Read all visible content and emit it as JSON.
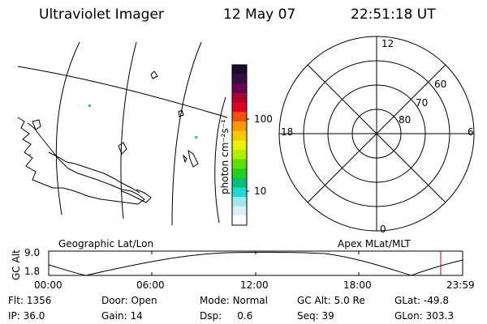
{
  "header": {
    "title": "Ultraviolet Imager",
    "date": "12 May 07",
    "time": "22:51:18 UT"
  },
  "colorbar": {
    "unit_label": "photon cm⁻²s⁻¹",
    "ticks": [
      "100",
      "10"
    ],
    "colors": [
      "#1a0a2e",
      "#3a0a40",
      "#6a0050",
      "#b00030",
      "#e00020",
      "#f05010",
      "#f59a00",
      "#f5c800",
      "#e8f000",
      "#b0f000",
      "#60e000",
      "#20d020",
      "#00c080",
      "#20d8d8",
      "#a0e8ec",
      "#d8f2f4",
      "#ffffff"
    ]
  },
  "map": {
    "left_caption": "Geographic Lat/Lon",
    "right_caption": "Apex MLat/MLT"
  },
  "polar": {
    "mlt_labels": {
      "top": "12",
      "left": "18",
      "right": "6",
      "bottom": "0"
    },
    "lat_labels": [
      "60",
      "70",
      "80"
    ]
  },
  "timeline": {
    "ylabel": "GC Alt",
    "yticks": [
      "9.0",
      "1.8"
    ],
    "xticks": [
      "00:00",
      "06:00",
      "12:00",
      "18:00",
      "23:59"
    ],
    "marker_color": "#c00000"
  },
  "info": {
    "row1": [
      {
        "k": "Flt:",
        "v": "1356"
      },
      {
        "k": "Door:",
        "v": "Open"
      },
      {
        "k": "Mode:",
        "v": "Normal"
      },
      {
        "k": "GC Alt:",
        "v": "5.0 Re"
      },
      {
        "k": "GLat:",
        "v": "-49.8"
      }
    ],
    "row2": [
      {
        "k": "IP:",
        "v": "36.0"
      },
      {
        "k": "Gain:",
        "v": "14"
      },
      {
        "k": "Dsp:",
        "v": "0.6"
      },
      {
        "k": "Seq:",
        "v": "39"
      },
      {
        "k": "GLon:",
        "v": "303.3"
      }
    ]
  }
}
